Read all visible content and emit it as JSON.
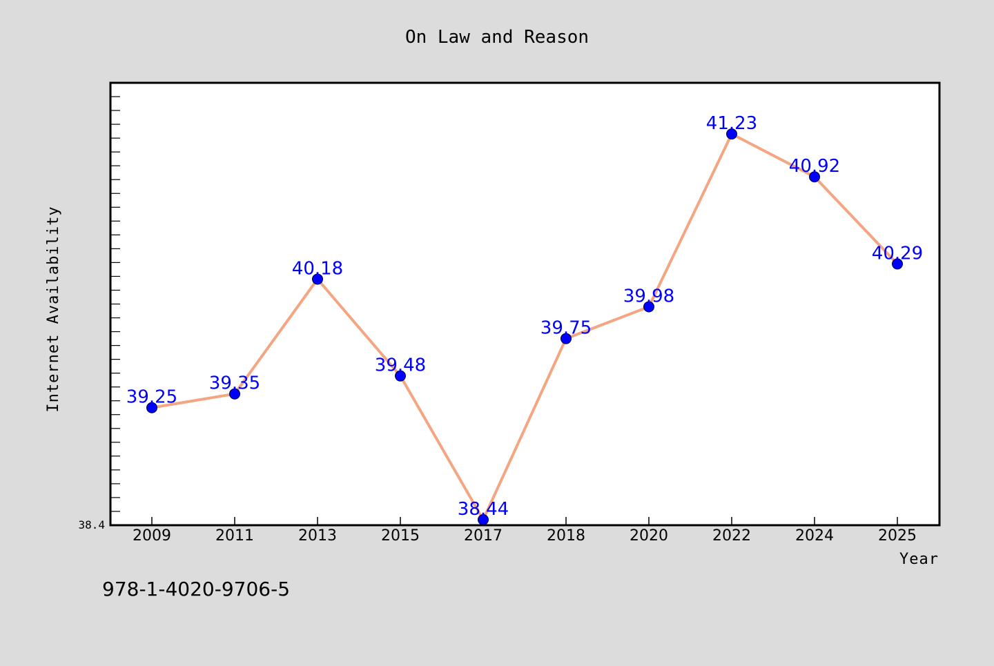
{
  "chart_data": {
    "type": "line",
    "title": "On Law and Reason",
    "xlabel": "Year",
    "ylabel": "Internet Availability",
    "categories": [
      "2009",
      "2011",
      "2013",
      "2015",
      "2017",
      "2018",
      "2020",
      "2022",
      "2024",
      "2025"
    ],
    "series": [
      {
        "values": [
          39.25,
          39.35,
          40.18,
          39.48,
          38.44,
          39.75,
          39.98,
          41.23,
          40.92,
          40.29
        ],
        "labels": [
          "39.25",
          "39.35",
          "40.18",
          "39.48",
          "38.44",
          "39.75",
          "39.98",
          "41.23",
          "40.92",
          "40.29"
        ]
      }
    ],
    "ylim": [
      38.4,
      41.6
    ],
    "y_tick_labels": [
      "38.4"
    ],
    "grid": false,
    "colors": {
      "line": "#f4a582",
      "marker": "#0000ff",
      "label": "#0000ff",
      "background": "#dcdcdc",
      "plot_background": "#ffffff"
    }
  },
  "footer": {
    "isbn": "978-1-4020-9706-5"
  }
}
